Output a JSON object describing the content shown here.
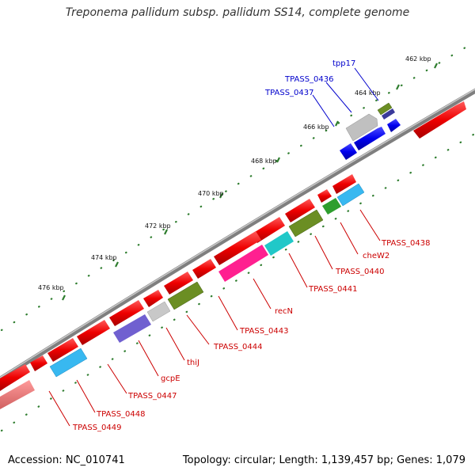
{
  "title": "Treponema pallidum subsp. pallidum SS14, complete genome",
  "footer": {
    "accession": "Accession: NC_010741",
    "stats": "Topology: circular; Length: 1,139,457 bp; Genes: 1,079"
  },
  "colors": {
    "backbone": "#7f7f7f",
    "tick": "#2e7d2e",
    "forward_gene": "#ee0000",
    "label_red": "#cc0000",
    "label_blue": "#0000cc"
  },
  "kbp_ticks": [
    "462 kbp",
    "464 kbp",
    "466 kbp",
    "468 kbp",
    "470 kbp",
    "472 kbp",
    "474 kbp",
    "476 kbp"
  ],
  "genes": {
    "top_labels": [
      "tpp17",
      "TPASS_0436",
      "TPASS_0437"
    ],
    "bottom_labels": [
      "TPASS_0438",
      "cheW2",
      "TPASS_0440",
      "TPASS_0441",
      "recN",
      "TPASS_0443",
      "TPASS_0444",
      "thiJ",
      "gcpE",
      "TPASS_0447",
      "TPASS_0448",
      "TPASS_0449"
    ]
  }
}
